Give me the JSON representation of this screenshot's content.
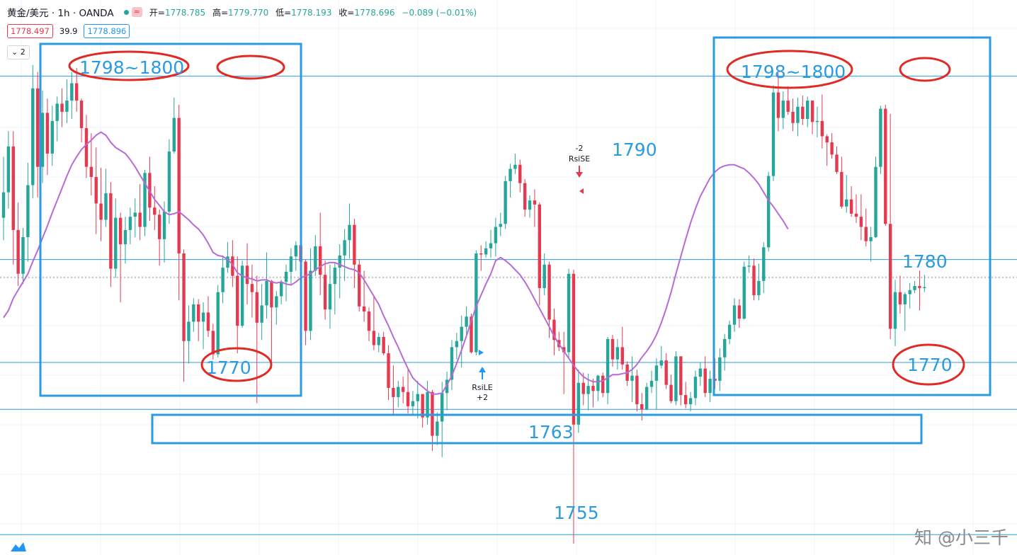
{
  "header": {
    "symbol": "黄金/美元 · 1h · OANDA",
    "open_label": "开=",
    "open": "1778.785",
    "high_label": "高=",
    "high": "1779.770",
    "low_label": "低=",
    "low": "1778.193",
    "close_label": "收=",
    "close": "1778.696",
    "change": "−0.089 (−0.01%)",
    "bid": "1778.497",
    "spread": "39.9",
    "ask": "1778.896",
    "indicator_toggle": "2",
    "wave_glyph": "≈"
  },
  "watermark": "知 @小三千",
  "colors": {
    "up": "#26a69a",
    "down": "#e53950",
    "ma": "#b76bd6",
    "annotation": "#2b9be0",
    "ellipse": "#e02a24",
    "hline": "#2b9be0"
  },
  "chart_data": {
    "type": "candlestick",
    "y_range": [
      1752.4,
      1803.4
    ],
    "horizontal_levels": [
      1799.4,
      1781.4,
      1771.3,
      1766.7,
      1754.4
    ],
    "annotations": {
      "labels": [
        "1798~1800",
        "1798~1800",
        "1790",
        "1780",
        "1770",
        "1770",
        "1763",
        "1755"
      ],
      "signals": [
        {
          "name": "RsiSE",
          "value": "-2"
        },
        {
          "name": "RsiLE",
          "value": "+2"
        }
      ]
    },
    "candles": [
      [
        1785.5,
        1791.5,
        1783.3,
        1788.0
      ],
      [
        1788.0,
        1794.0,
        1786.4,
        1792.5
      ],
      [
        1792.5,
        1794.0,
        1780.9,
        1784.3
      ],
      [
        1784.3,
        1787.0,
        1778.8,
        1780.0
      ],
      [
        1780.0,
        1784.5,
        1779.0,
        1783.6
      ],
      [
        1783.6,
        1790.9,
        1781.2,
        1788.7
      ],
      [
        1788.7,
        1800.5,
        1787.4,
        1798.2
      ],
      [
        1798.2,
        1799.8,
        1787.5,
        1790.5
      ],
      [
        1790.5,
        1798.0,
        1788.9,
        1795.8
      ],
      [
        1795.8,
        1797.2,
        1789.7,
        1791.8
      ],
      [
        1791.8,
        1796.5,
        1790.6,
        1795.0
      ],
      [
        1795.0,
        1797.4,
        1793.0,
        1796.7
      ],
      [
        1796.7,
        1798.2,
        1794.4,
        1795.9
      ],
      [
        1795.9,
        1799.1,
        1794.8,
        1797.0
      ],
      [
        1797.0,
        1799.8,
        1795.2,
        1798.7
      ],
      [
        1798.7,
        1800.2,
        1795.9,
        1797.0
      ],
      [
        1797.0,
        1797.2,
        1792.9,
        1794.3
      ],
      [
        1794.3,
        1795.6,
        1789.4,
        1790.5
      ],
      [
        1790.5,
        1793.8,
        1787.7,
        1789.5
      ],
      [
        1789.5,
        1792.4,
        1783.9,
        1786.9
      ],
      [
        1786.9,
        1790.4,
        1783.2,
        1785.3
      ],
      [
        1785.3,
        1790.3,
        1784.6,
        1787.9
      ],
      [
        1787.9,
        1789.0,
        1778.7,
        1780.5
      ],
      [
        1780.5,
        1787.4,
        1779.6,
        1785.5
      ],
      [
        1785.5,
        1786.0,
        1777.2,
        1782.9
      ],
      [
        1782.9,
        1785.6,
        1781.0,
        1784.3
      ],
      [
        1784.3,
        1786.5,
        1782.9,
        1785.6
      ],
      [
        1785.6,
        1787.4,
        1783.6,
        1786.0
      ],
      [
        1786.0,
        1788.8,
        1783.3,
        1784.6
      ],
      [
        1784.6,
        1790.2,
        1783.7,
        1789.9
      ],
      [
        1789.9,
        1791.5,
        1785.2,
        1786.5
      ],
      [
        1786.5,
        1788.6,
        1784.3,
        1785.8
      ],
      [
        1785.8,
        1786.3,
        1780.8,
        1783.4
      ],
      [
        1783.4,
        1787.1,
        1781.1,
        1786.1
      ],
      [
        1786.1,
        1793.2,
        1784.9,
        1792.0
      ],
      [
        1792.0,
        1797.3,
        1791.8,
        1795.3
      ],
      [
        1795.3,
        1796.6,
        1777.4,
        1782.0
      ],
      [
        1782.0,
        1782.4,
        1769.4,
        1773.4
      ],
      [
        1773.4,
        1776.9,
        1771.2,
        1775.3
      ],
      [
        1775.3,
        1777.6,
        1774.3,
        1777.0
      ],
      [
        1777.0,
        1777.5,
        1773.4,
        1775.3
      ],
      [
        1775.3,
        1777.2,
        1772.6,
        1776.2
      ],
      [
        1776.2,
        1777.8,
        1773.8,
        1774.4
      ],
      [
        1774.4,
        1775.1,
        1771.6,
        1772.1
      ],
      [
        1772.1,
        1778.9,
        1771.8,
        1778.2
      ],
      [
        1778.2,
        1781.8,
        1777.1,
        1780.6
      ],
      [
        1780.6,
        1783.1,
        1780.1,
        1781.7
      ],
      [
        1781.7,
        1783.3,
        1778.7,
        1779.8
      ],
      [
        1779.8,
        1781.7,
        1772.2,
        1774.9
      ],
      [
        1774.9,
        1781.3,
        1774.7,
        1780.8
      ],
      [
        1780.8,
        1783.0,
        1777.0,
        1779.0
      ],
      [
        1779.0,
        1780.9,
        1775.7,
        1778.2
      ],
      [
        1778.2,
        1779.8,
        1767.3,
        1775.2
      ],
      [
        1775.2,
        1779.0,
        1773.5,
        1776.9
      ],
      [
        1776.9,
        1782.1,
        1775.6,
        1779.3
      ],
      [
        1779.3,
        1779.4,
        1770.7,
        1776.7
      ],
      [
        1776.7,
        1778.3,
        1775.0,
        1777.8
      ],
      [
        1777.8,
        1779.4,
        1777.0,
        1779.2
      ],
      [
        1779.2,
        1780.9,
        1777.3,
        1780.2
      ],
      [
        1780.2,
        1782.5,
        1778.9,
        1781.7
      ],
      [
        1781.7,
        1783.2,
        1780.3,
        1782.8
      ],
      [
        1782.8,
        1784.6,
        1780.7,
        1781.2
      ],
      [
        1781.2,
        1781.4,
        1773.0,
        1774.4
      ],
      [
        1774.4,
        1782.5,
        1773.5,
        1780.3
      ],
      [
        1780.3,
        1783.8,
        1779.8,
        1782.7
      ],
      [
        1782.7,
        1786.0,
        1777.9,
        1779.9
      ],
      [
        1779.9,
        1781.3,
        1775.5,
        1776.5
      ],
      [
        1776.5,
        1780.9,
        1774.6,
        1779.0
      ],
      [
        1779.0,
        1781.1,
        1776.0,
        1780.6
      ],
      [
        1780.6,
        1782.9,
        1777.6,
        1781.8
      ],
      [
        1781.8,
        1784.4,
        1779.3,
        1783.3
      ],
      [
        1783.3,
        1786.9,
        1781.5,
        1784.8
      ],
      [
        1784.8,
        1785.4,
        1778.6,
        1780.9
      ],
      [
        1780.9,
        1781.4,
        1776.3,
        1776.8
      ],
      [
        1776.8,
        1780.3,
        1775.3,
        1776.3
      ],
      [
        1776.3,
        1776.7,
        1773.4,
        1774.4
      ],
      [
        1774.4,
        1777.7,
        1772.5,
        1773.0
      ],
      [
        1773.0,
        1774.2,
        1772.3,
        1773.8
      ],
      [
        1773.8,
        1774.3,
        1772.0,
        1772.2
      ],
      [
        1772.2,
        1773.0,
        1767.6,
        1768.8
      ],
      [
        1768.8,
        1771.0,
        1766.2,
        1767.9
      ],
      [
        1767.9,
        1769.5,
        1766.9,
        1768.9
      ],
      [
        1768.9,
        1769.9,
        1767.3,
        1768.4
      ],
      [
        1768.4,
        1770.7,
        1766.3,
        1767.0
      ],
      [
        1767.0,
        1768.5,
        1766.2,
        1767.5
      ],
      [
        1767.5,
        1769.5,
        1765.8,
        1768.2
      ],
      [
        1768.2,
        1768.2,
        1764.9,
        1765.9
      ],
      [
        1765.9,
        1769.5,
        1765.2,
        1768.4
      ],
      [
        1768.4,
        1768.6,
        1762.6,
        1764.1
      ],
      [
        1764.1,
        1766.4,
        1763.2,
        1765.5
      ],
      [
        1765.5,
        1769.4,
        1762.0,
        1768.3
      ],
      [
        1768.3,
        1770.4,
        1766.6,
        1769.6
      ],
      [
        1769.6,
        1773.5,
        1768.6,
        1772.8
      ],
      [
        1772.8,
        1774.2,
        1771.6,
        1773.4
      ],
      [
        1773.4,
        1775.9,
        1770.8,
        1774.8
      ],
      [
        1774.8,
        1776.8,
        1773.7,
        1775.8
      ],
      [
        1775.8,
        1776.1,
        1772.2,
        1772.3
      ],
      [
        1772.3,
        1782.3,
        1772.0,
        1782.0
      ],
      [
        1782.0,
        1782.8,
        1780.3,
        1781.9
      ],
      [
        1781.9,
        1783.2,
        1781.6,
        1782.5
      ],
      [
        1782.5,
        1784.3,
        1781.6,
        1783.0
      ],
      [
        1783.0,
        1785.5,
        1781.7,
        1784.6
      ],
      [
        1784.6,
        1786.0,
        1783.7,
        1784.9
      ],
      [
        1784.9,
        1789.6,
        1784.4,
        1789.1
      ],
      [
        1789.1,
        1790.8,
        1787.5,
        1790.3
      ],
      [
        1790.3,
        1791.8,
        1789.8,
        1790.7
      ],
      [
        1790.7,
        1791.2,
        1788.0,
        1788.9
      ],
      [
        1788.9,
        1789.3,
        1785.6,
        1786.3
      ],
      [
        1786.3,
        1787.7,
        1785.5,
        1787.2
      ],
      [
        1787.2,
        1788.3,
        1784.6,
        1786.8
      ],
      [
        1786.8,
        1787.0,
        1776.9,
        1778.6
      ],
      [
        1778.6,
        1782.0,
        1777.9,
        1780.9
      ],
      [
        1780.9,
        1781.2,
        1773.7,
        1775.5
      ],
      [
        1775.5,
        1776.6,
        1772.0,
        1773.5
      ],
      [
        1773.5,
        1774.3,
        1772.4,
        1772.8
      ],
      [
        1772.8,
        1774.3,
        1768.2,
        1772.3
      ],
      [
        1772.3,
        1780.5,
        1771.7,
        1780.0
      ],
      [
        1780.0,
        1780.4,
        1753.5,
        1765.2
      ],
      [
        1765.2,
        1770.6,
        1764.4,
        1769.3
      ],
      [
        1769.3,
        1770.3,
        1767.1,
        1768.2
      ],
      [
        1768.2,
        1770.2,
        1766.6,
        1769.0
      ],
      [
        1769.0,
        1769.7,
        1766.9,
        1768.5
      ],
      [
        1768.5,
        1770.1,
        1767.5,
        1770.0
      ],
      [
        1770.0,
        1770.3,
        1767.9,
        1768.3
      ],
      [
        1768.3,
        1773.8,
        1767.2,
        1773.6
      ],
      [
        1773.6,
        1774.0,
        1770.9,
        1771.6
      ],
      [
        1771.6,
        1773.6,
        1770.6,
        1772.8
      ],
      [
        1772.8,
        1774.8,
        1770.6,
        1771.1
      ],
      [
        1771.1,
        1771.4,
        1769.0,
        1769.5
      ],
      [
        1769.5,
        1771.9,
        1767.4,
        1770.0
      ],
      [
        1770.0,
        1770.6,
        1766.5,
        1767.2
      ],
      [
        1767.2,
        1768.3,
        1765.6,
        1766.7
      ],
      [
        1766.7,
        1769.3,
        1766.6,
        1768.9
      ],
      [
        1768.9,
        1770.5,
        1768.3,
        1769.5
      ],
      [
        1769.5,
        1771.7,
        1766.7,
        1771.0
      ],
      [
        1771.0,
        1772.9,
        1770.7,
        1771.5
      ],
      [
        1771.5,
        1772.2,
        1768.7,
        1769.1
      ],
      [
        1769.1,
        1770.1,
        1767.3,
        1767.5
      ],
      [
        1767.5,
        1772.4,
        1767.1,
        1771.9
      ],
      [
        1771.9,
        1771.9,
        1767.1,
        1768.1
      ],
      [
        1768.1,
        1769.4,
        1766.8,
        1767.2
      ],
      [
        1767.2,
        1768.4,
        1766.5,
        1767.8
      ],
      [
        1767.8,
        1770.5,
        1767.1,
        1769.9
      ],
      [
        1769.9,
        1771.3,
        1769.0,
        1770.7
      ],
      [
        1770.7,
        1771.9,
        1767.9,
        1768.3
      ],
      [
        1768.3,
        1770.5,
        1767.4,
        1769.7
      ],
      [
        1769.7,
        1771.7,
        1768.7,
        1769.5
      ],
      [
        1769.5,
        1772.7,
        1768.5,
        1771.8
      ],
      [
        1771.8,
        1774.1,
        1770.5,
        1773.6
      ],
      [
        1773.6,
        1775.4,
        1773.1,
        1775.0
      ],
      [
        1775.0,
        1777.6,
        1774.3,
        1776.9
      ],
      [
        1776.9,
        1777.5,
        1774.7,
        1775.6
      ],
      [
        1775.6,
        1781.2,
        1775.5,
        1780.7
      ],
      [
        1780.7,
        1781.8,
        1780.1,
        1780.8
      ],
      [
        1780.8,
        1781.5,
        1777.4,
        1777.9
      ],
      [
        1777.9,
        1781.0,
        1777.4,
        1779.3
      ],
      [
        1779.3,
        1783.1,
        1778.1,
        1782.6
      ],
      [
        1782.6,
        1790.0,
        1782.2,
        1789.6
      ],
      [
        1789.6,
        1798.5,
        1789.1,
        1797.8
      ],
      [
        1797.8,
        1799.7,
        1794.0,
        1795.3
      ],
      [
        1795.3,
        1797.9,
        1794.2,
        1797.0
      ],
      [
        1797.0,
        1798.4,
        1795.6,
        1795.9
      ],
      [
        1795.9,
        1797.2,
        1794.0,
        1794.8
      ],
      [
        1794.8,
        1797.3,
        1793.5,
        1796.4
      ],
      [
        1796.4,
        1797.5,
        1794.6,
        1795.2
      ],
      [
        1795.2,
        1797.4,
        1794.4,
        1797.0
      ],
      [
        1797.0,
        1797.0,
        1793.7,
        1794.9
      ],
      [
        1794.9,
        1796.4,
        1793.4,
        1795.0
      ],
      [
        1795.0,
        1797.6,
        1792.3,
        1793.5
      ],
      [
        1793.5,
        1793.7,
        1790.6,
        1792.9
      ],
      [
        1792.9,
        1793.8,
        1791.3,
        1791.7
      ],
      [
        1791.7,
        1792.5,
        1789.8,
        1790.0
      ],
      [
        1790.0,
        1791.5,
        1786.4,
        1786.6
      ],
      [
        1786.6,
        1789.7,
        1786.0,
        1787.3
      ],
      [
        1787.3,
        1788.6,
        1785.6,
        1785.9
      ],
      [
        1785.9,
        1787.8,
        1785.0,
        1785.6
      ],
      [
        1785.6,
        1787.8,
        1783.3,
        1784.6
      ],
      [
        1784.6,
        1786.4,
        1782.7,
        1783.2
      ],
      [
        1783.2,
        1784.6,
        1781.2,
        1783.6
      ],
      [
        1783.6,
        1791.5,
        1783.5,
        1790.5
      ],
      [
        1790.5,
        1796.5,
        1789.8,
        1796.2
      ],
      [
        1796.2,
        1796.6,
        1784.7,
        1784.9
      ],
      [
        1784.9,
        1795.7,
        1773.6,
        1774.6
      ],
      [
        1774.6,
        1779.4,
        1772.9,
        1778.2
      ],
      [
        1778.2,
        1779.8,
        1776.1,
        1777.0
      ],
      [
        1777.0,
        1778.2,
        1774.4,
        1778.0
      ],
      [
        1778.0,
        1779.1,
        1776.6,
        1778.4
      ],
      [
        1778.4,
        1779.3,
        1778.1,
        1778.8
      ],
      [
        1778.8,
        1780.3,
        1776.4,
        1778.6
      ],
      [
        1778.6,
        1779.9,
        1778.2,
        1778.7
      ]
    ],
    "moving_average": [
      1775.7,
      1776.4,
      1777.6,
      1778.4,
      1779.2,
      1780.0,
      1781.2,
      1782.3,
      1783.5,
      1784.7,
      1786.0,
      1787.2,
      1788.4,
      1789.6,
      1790.7,
      1791.5,
      1792.2,
      1792.7,
      1793.1,
      1793.6,
      1793.9,
      1793.6,
      1792.9,
      1792.4,
      1792.1,
      1791.8,
      1791.2,
      1790.5,
      1789.7,
      1788.9,
      1788.1,
      1787.3,
      1786.7,
      1786.1,
      1785.8,
      1785.9,
      1786.1,
      1785.7,
      1785.3,
      1784.8,
      1784.4,
      1783.8,
      1783.0,
      1782.1,
      1781.8,
      1781.7,
      1781.4,
      1780.9,
      1780.1,
      1779.8,
      1779.6,
      1779.5,
      1779.3,
      1779.4,
      1779.4,
      1779.2,
      1779.1,
      1779.2,
      1779.0,
      1778.9,
      1779.2,
      1779.6,
      1779.8,
      1780.0,
      1780.4,
      1780.7,
      1781.0,
      1781.1,
      1781.1,
      1780.9,
      1780.7,
      1780.5,
      1780.4,
      1780.1,
      1779.4,
      1778.6,
      1777.8,
      1777.0,
      1775.9,
      1774.9,
      1773.8,
      1772.8,
      1771.7,
      1770.7,
      1769.8,
      1769.3,
      1768.9,
      1768.5,
      1768.2,
      1768.2,
      1768.3,
      1769.1,
      1770.0,
      1771.2,
      1772.5,
      1773.9,
      1775.4,
      1776.8,
      1777.9,
      1779.0,
      1780.0,
      1781.3,
      1781.6,
      1781.3,
      1780.9,
      1780.4,
      1779.9,
      1779.2,
      1778.4,
      1777.5,
      1776.6,
      1775.7,
      1774.8,
      1773.9,
      1773.1,
      1772.4,
      1771.7,
      1771.0,
      1770.4,
      1769.9,
      1769.6,
      1769.4,
      1769.4,
      1769.5,
      1769.8,
      1770.1,
      1770.1,
      1770.2,
      1770.3,
      1770.6,
      1771.1,
      1771.8,
      1772.4,
      1773.1,
      1774.0,
      1775.2,
      1776.6,
      1778.2,
      1780.0,
      1781.7,
      1783.4,
      1785.0,
      1786.4,
      1787.6,
      1788.5,
      1789.4,
      1790.0,
      1790.4,
      1790.6,
      1790.7,
      1790.7,
      1790.5,
      1790.3,
      1789.9,
      1789.4,
      1788.8,
      1788.0,
      1787.2,
      1786.6,
      1785.9,
      1785.2,
      1784.4
    ]
  }
}
